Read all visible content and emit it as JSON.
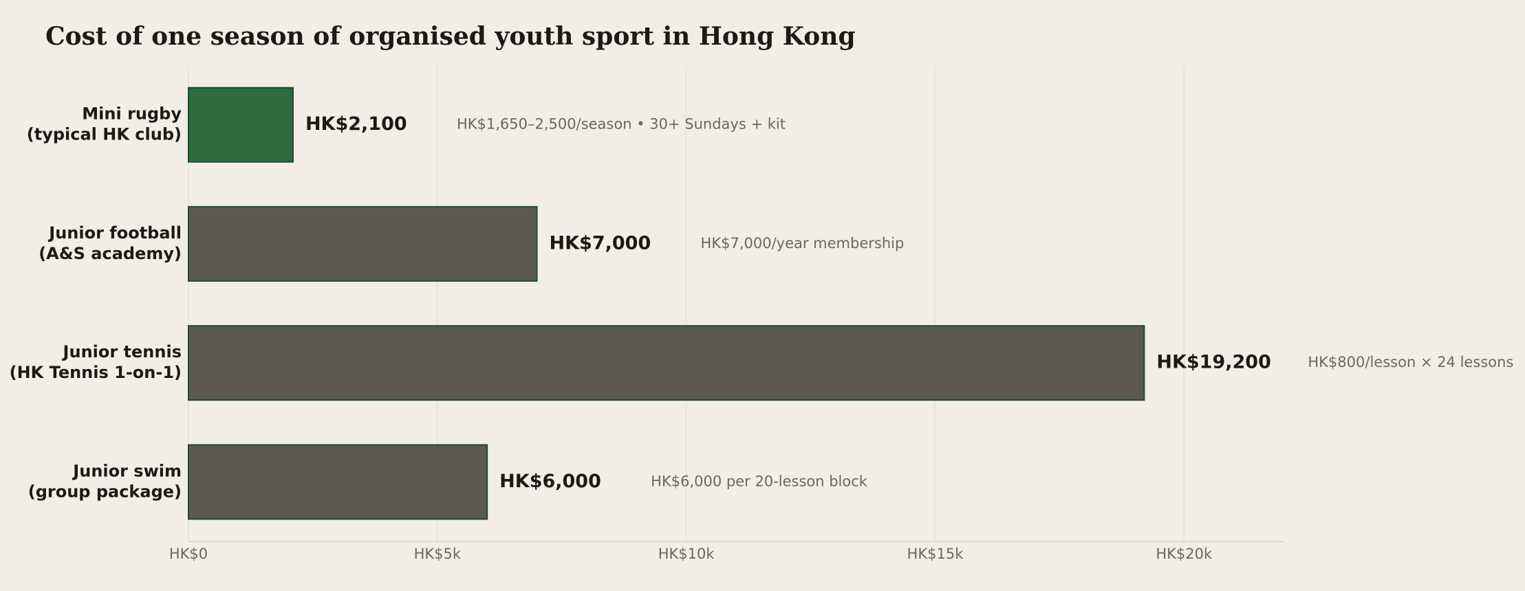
{
  "chart_data": {
    "type": "hbar",
    "title": "Cost of one season of organised youth sport in Hong Kong",
    "categories": [
      [
        "Mini rugby",
        "(typical HK club)"
      ],
      [
        "Junior football",
        "(A&S academy)"
      ],
      [
        "Junior tennis",
        "(HK Tennis 1-on-1)"
      ],
      [
        "Junior swim",
        "(group package)"
      ]
    ],
    "values": [
      2100,
      7000,
      19200,
      6000
    ],
    "value_labels": [
      "HK$2,100",
      "HK$7,000",
      "HK$19,200",
      "HK$6,000"
    ],
    "annotations": [
      "HK$1,650–2,500/season • 30+ Sundays + kit",
      "HK$7,000/year membership",
      "HK$800/lesson × 24 lessons",
      "HK$6,000 per 20-lesson block"
    ],
    "colors": [
      "#2f6b3f",
      "#5c5952",
      "#5c5952",
      "#5c5952"
    ],
    "xlim": [
      0,
      22000
    ],
    "xticks": [
      {
        "value": 0,
        "label": "HK$0"
      },
      {
        "value": 5000,
        "label": "HK$5k"
      },
      {
        "value": 10000,
        "label": "HK$10k"
      },
      {
        "value": 15000,
        "label": "HK$15k"
      },
      {
        "value": 20000,
        "label": "HK$20k"
      }
    ],
    "grid": true
  }
}
